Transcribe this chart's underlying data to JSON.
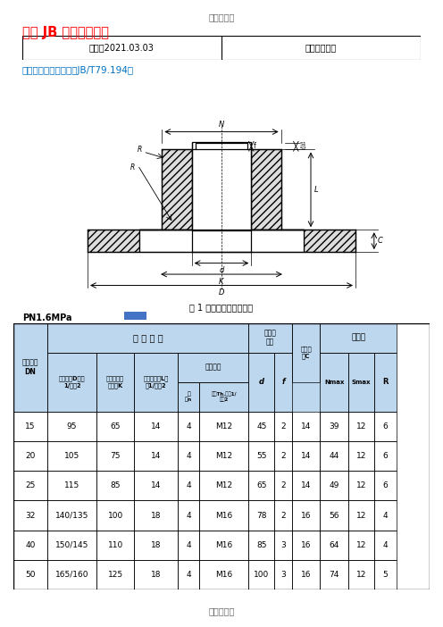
{
  "top_label": "欧阳学创编",
  "title": "中国 JB 标准法兰尺寸",
  "title_color": "#FF0000",
  "info_time": "时间：2021.03.03",
  "info_author": "创作：欧阳学",
  "section_title": "凸面整体铸钢管法兰（JB/T79.194）",
  "section_title_color": "#0070C0",
  "fig_caption": "图 1 凸面整体铸钢管法兰",
  "pn_label": "PN1.6MPa",
  "table_header_bg": "#BDD7EE",
  "conn_header": "连 接 尺 寸",
  "rows": [
    [
      "15",
      "95",
      "65",
      "14",
      "4",
      "M12",
      "45",
      "2",
      "14",
      "39",
      "12",
      "6"
    ],
    [
      "20",
      "105",
      "75",
      "14",
      "4",
      "M12",
      "55",
      "2",
      "14",
      "44",
      "12",
      "6"
    ],
    [
      "25",
      "115",
      "85",
      "14",
      "4",
      "M12",
      "65",
      "2",
      "14",
      "49",
      "12",
      "6"
    ],
    [
      "32",
      "140/135",
      "100",
      "18",
      "4",
      "M16",
      "78",
      "2",
      "16",
      "56",
      "12",
      "4"
    ],
    [
      "40",
      "150/145",
      "110",
      "18",
      "4",
      "M16",
      "85",
      "3",
      "16",
      "64",
      "12",
      "4"
    ],
    [
      "50",
      "165/160",
      "125",
      "18",
      "4",
      "M16",
      "100",
      "3",
      "16",
      "74",
      "12",
      "5"
    ]
  ],
  "bottom_label": "欧阳学创编",
  "bg_color": "#FFFFFF"
}
